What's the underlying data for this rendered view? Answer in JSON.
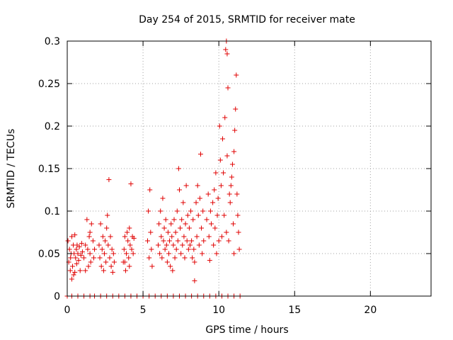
{
  "chart_data": {
    "type": "scatter",
    "title": "Day 254 of 2015, SRMTID for receiver mate",
    "xlabel": "GPS time / hours",
    "ylabel": "SRMTID / TECUs",
    "xlim": [
      0,
      24
    ],
    "ylim": [
      0,
      0.3
    ],
    "x_ticks": [
      "0",
      "5",
      "10",
      "15",
      "20"
    ],
    "y_ticks": [
      "0",
      "0.05",
      "0.1",
      "0.15",
      "0.2",
      "0.25",
      "0.3"
    ],
    "grid": true,
    "marker": "+",
    "color": "#e00000",
    "series": [
      {
        "name": "SRMTID",
        "points": [
          [
            0.05,
            0.065
          ],
          [
            0.1,
            0.04
          ],
          [
            0.15,
            0.055
          ],
          [
            0.2,
            0.03
          ],
          [
            0.22,
            0.045
          ],
          [
            0.25,
            0.05
          ],
          [
            0.3,
            0.07
          ],
          [
            0.35,
            0.035
          ],
          [
            0.4,
            0.06
          ],
          [
            0.42,
            0.025
          ],
          [
            0.45,
            0.05
          ],
          [
            0.5,
            0.072
          ],
          [
            0.55,
            0.045
          ],
          [
            0.6,
            0.055
          ],
          [
            0.62,
            0.038
          ],
          [
            0.65,
            0.06
          ],
          [
            0.7,
            0.05
          ],
          [
            0.75,
            0.042
          ],
          [
            0.8,
            0.058
          ],
          [
            0.85,
            0.03
          ],
          [
            0.9,
            0.048
          ],
          [
            0.95,
            0.062
          ],
          [
            1.0,
            0.052
          ],
          [
            0.3,
            0.02
          ],
          [
            0.5,
            0.028
          ],
          [
            1.1,
            0.045
          ],
          [
            1.2,
            0.06
          ],
          [
            1.3,
            0.09
          ],
          [
            1.35,
            0.055
          ],
          [
            1.4,
            0.035
          ],
          [
            1.45,
            0.07
          ],
          [
            1.5,
            0.05
          ],
          [
            1.55,
            0.04
          ],
          [
            1.6,
            0.085
          ],
          [
            1.7,
            0.065
          ],
          [
            1.75,
            0.045
          ],
          [
            1.8,
            0.055
          ],
          [
            1.2,
            0.03
          ],
          [
            1.5,
            0.075
          ],
          [
            2.1,
            0.06
          ],
          [
            2.15,
            0.045
          ],
          [
            2.2,
            0.085
          ],
          [
            2.25,
            0.035
          ],
          [
            2.3,
            0.055
          ],
          [
            2.35,
            0.07
          ],
          [
            2.4,
            0.03
          ],
          [
            2.45,
            0.05
          ],
          [
            2.5,
            0.065
          ],
          [
            2.55,
            0.04
          ],
          [
            2.6,
            0.08
          ],
          [
            2.65,
            0.095
          ],
          [
            2.7,
            0.06
          ],
          [
            2.75,
            0.137
          ],
          [
            2.8,
            0.045
          ],
          [
            2.85,
            0.07
          ],
          [
            2.9,
            0.035
          ],
          [
            2.95,
            0.055
          ],
          [
            3.0,
            0.028
          ],
          [
            3.05,
            0.05
          ],
          [
            3.1,
            0.04
          ],
          [
            3.7,
            0.04
          ],
          [
            3.75,
            0.055
          ],
          [
            3.8,
            0.07
          ],
          [
            3.85,
            0.03
          ],
          [
            3.9,
            0.05
          ],
          [
            3.95,
            0.075
          ],
          [
            4.0,
            0.065
          ],
          [
            4.05,
            0.045
          ],
          [
            4.1,
            0.08
          ],
          [
            4.15,
            0.06
          ],
          [
            4.2,
            0.132
          ],
          [
            4.25,
            0.055
          ],
          [
            4.3,
            0.07
          ],
          [
            4.35,
            0.05
          ],
          [
            4.4,
            0.068
          ],
          [
            3.8,
            0.04
          ],
          [
            4.1,
            0.035
          ],
          [
            5.3,
            0.065
          ],
          [
            5.35,
            0.1
          ],
          [
            5.4,
            0.045
          ],
          [
            5.45,
            0.125
          ],
          [
            5.5,
            0.075
          ],
          [
            5.55,
            0.055
          ],
          [
            5.6,
            0.035
          ],
          [
            6.0,
            0.06
          ],
          [
            6.05,
            0.085
          ],
          [
            6.1,
            0.05
          ],
          [
            6.15,
            0.1
          ],
          [
            6.2,
            0.07
          ],
          [
            6.25,
            0.045
          ],
          [
            6.3,
            0.115
          ],
          [
            6.35,
            0.065
          ],
          [
            6.4,
            0.08
          ],
          [
            6.45,
            0.055
          ],
          [
            6.5,
            0.09
          ],
          [
            6.55,
            0.06
          ],
          [
            6.6,
            0.04
          ],
          [
            6.65,
            0.075
          ],
          [
            6.7,
            0.05
          ],
          [
            6.75,
            0.065
          ],
          [
            6.8,
            0.035
          ],
          [
            6.85,
            0.085
          ],
          [
            6.9,
            0.07
          ],
          [
            6.95,
            0.03
          ],
          [
            7.0,
            0.06
          ],
          [
            7.05,
            0.09
          ],
          [
            7.1,
            0.045
          ],
          [
            7.15,
            0.075
          ],
          [
            7.2,
            0.055
          ],
          [
            7.25,
            0.1
          ],
          [
            7.3,
            0.065
          ],
          [
            7.35,
            0.15
          ],
          [
            7.4,
            0.125
          ],
          [
            7.45,
            0.08
          ],
          [
            7.5,
            0.05
          ],
          [
            7.55,
            0.09
          ],
          [
            7.6,
            0.06
          ],
          [
            7.65,
            0.11
          ],
          [
            7.7,
            0.07
          ],
          [
            7.75,
            0.045
          ],
          [
            7.8,
            0.085
          ],
          [
            7.85,
            0.13
          ],
          [
            7.9,
            0.065
          ],
          [
            7.95,
            0.095
          ],
          [
            8.0,
            0.055
          ],
          [
            8.05,
            0.08
          ],
          [
            8.1,
            0.06
          ],
          [
            8.15,
            0.1
          ],
          [
            8.2,
            0.065
          ],
          [
            8.25,
            0.045
          ],
          [
            8.3,
            0.09
          ],
          [
            8.35,
            0.055
          ],
          [
            8.4,
            0.04
          ],
          [
            8.5,
            0.11
          ],
          [
            8.55,
            0.07
          ],
          [
            8.6,
            0.13
          ],
          [
            8.65,
            0.095
          ],
          [
            8.7,
            0.06
          ],
          [
            8.75,
            0.115
          ],
          [
            8.8,
            0.167
          ],
          [
            8.85,
            0.08
          ],
          [
            8.9,
            0.05
          ],
          [
            8.95,
            0.1
          ],
          [
            9.0,
            0.065
          ],
          [
            8.4,
            0.018
          ],
          [
            9.2,
            0.09
          ],
          [
            9.3,
            0.12
          ],
          [
            9.35,
            0.07
          ],
          [
            9.4,
            0.042
          ],
          [
            9.45,
            0.1
          ],
          [
            9.5,
            0.085
          ],
          [
            9.6,
            0.11
          ],
          [
            9.65,
            0.06
          ],
          [
            9.7,
            0.125
          ],
          [
            9.75,
            0.08
          ],
          [
            9.8,
            0.145
          ],
          [
            9.85,
            0.05
          ],
          [
            9.9,
            0.095
          ],
          [
            9.95,
            0.115
          ],
          [
            10.0,
            0.065
          ],
          [
            10.05,
            0.2
          ],
          [
            10.1,
            0.16
          ],
          [
            10.15,
            0.13
          ],
          [
            10.2,
            0.07
          ],
          [
            10.25,
            0.185
          ],
          [
            10.3,
            0.145
          ],
          [
            10.35,
            0.095
          ],
          [
            10.4,
            0.21
          ],
          [
            10.45,
            0.29
          ],
          [
            10.5,
            0.075
          ],
          [
            10.55,
            0.165
          ],
          [
            10.6,
            0.245
          ],
          [
            10.65,
            0.065
          ],
          [
            10.7,
            0.12
          ],
          [
            10.75,
            0.11
          ],
          [
            10.8,
            0.13
          ],
          [
            10.85,
            0.14
          ],
          [
            10.9,
            0.155
          ],
          [
            10.95,
            0.085
          ],
          [
            11.0,
            0.17
          ],
          [
            11.05,
            0.195
          ],
          [
            11.1,
            0.22
          ],
          [
            11.15,
            0.26
          ],
          [
            11.2,
            0.12
          ],
          [
            11.25,
            0.095
          ],
          [
            11.3,
            0.075
          ],
          [
            11.35,
            0.055
          ],
          [
            11.0,
            0.05
          ],
          [
            10.5,
            0.3
          ],
          [
            10.55,
            0.285
          ]
        ],
        "zero_x": [
          0.0,
          0.3,
          0.7,
          1.1,
          1.5,
          1.8,
          2.2,
          2.6,
          3.0,
          3.4,
          3.8,
          4.2,
          4.6,
          5.0,
          5.4,
          5.8,
          6.2,
          6.6,
          7.0,
          7.4,
          7.8,
          8.2,
          8.6,
          9.0,
          9.4,
          9.8,
          10.2,
          10.6,
          11.0,
          11.4
        ]
      }
    ]
  }
}
